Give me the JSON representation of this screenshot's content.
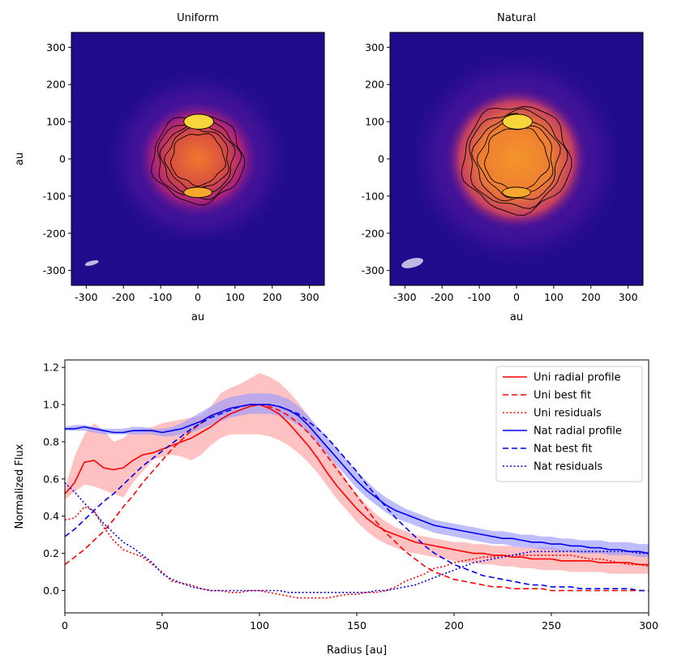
{
  "chart_data": [
    {
      "type": "heatmap",
      "title": "Uniform",
      "xlabel": "au",
      "ylabel": "au",
      "xlim": [
        -340,
        340
      ],
      "ylim": [
        -340,
        340
      ],
      "xticks": [
        -300,
        -200,
        -100,
        0,
        100,
        200,
        300
      ],
      "yticks": [
        300,
        200,
        100,
        0,
        -100,
        -200,
        -300
      ],
      "xtick_labels": [
        "-300",
        "-200",
        "-100",
        "0",
        "100",
        "200",
        "300"
      ],
      "ytick_labels": [
        "300",
        "200",
        "100",
        "0",
        "-100",
        "-200",
        "-300"
      ],
      "colormap": "inferno-like (dark blue to yellow)",
      "beam": {
        "x": -285,
        "y": -280,
        "major": 38,
        "minor": 12,
        "angle_deg": 15
      },
      "disk": {
        "semi_x": 140,
        "semi_y": 135
      },
      "contour_levels": [
        0.3,
        0.45,
        0.6,
        0.75,
        0.9
      ]
    },
    {
      "type": "heatmap",
      "title": "Natural",
      "xlabel": "au",
      "ylabel": "",
      "xlim": [
        -340,
        340
      ],
      "ylim": [
        -340,
        340
      ],
      "xticks": [
        -300,
        -200,
        -100,
        0,
        100,
        200,
        300
      ],
      "yticks": [
        300,
        200,
        100,
        0,
        -100,
        -200,
        -300
      ],
      "xtick_labels": [
        "-300",
        "-200",
        "-100",
        "0",
        "100",
        "200",
        "300"
      ],
      "ytick_labels": [
        "300",
        "200",
        "100",
        "0",
        "-100",
        "-200",
        "-300"
      ],
      "colormap": "inferno-like (dark blue to yellow)",
      "beam": {
        "x": -280,
        "y": -280,
        "major": 60,
        "minor": 24,
        "angle_deg": 15
      },
      "disk": {
        "semi_x": 165,
        "semi_y": 165
      },
      "contour_levels": [
        0.3,
        0.45,
        0.6,
        0.75,
        0.9
      ]
    },
    {
      "type": "line",
      "title": "",
      "xlabel": "Radius [au]",
      "ylabel": "Normalized Flux",
      "xlim": [
        0,
        300
      ],
      "ylim": [
        -0.12,
        1.24
      ],
      "xticks": [
        0,
        50,
        100,
        150,
        200,
        250,
        300
      ],
      "yticks": [
        0.0,
        0.2,
        0.4,
        0.6,
        0.8,
        1.0,
        1.2
      ],
      "xtick_labels": [
        "0",
        "50",
        "100",
        "150",
        "200",
        "250",
        "300"
      ],
      "ytick_labels": [
        "0.0",
        "0.2",
        "0.4",
        "0.6",
        "0.8",
        "1.0",
        "1.2"
      ],
      "legend_position": "top-right",
      "x": [
        0,
        5,
        10,
        15,
        20,
        25,
        30,
        35,
        40,
        45,
        50,
        55,
        60,
        65,
        70,
        75,
        80,
        85,
        90,
        95,
        100,
        105,
        110,
        115,
        120,
        125,
        130,
        135,
        140,
        145,
        150,
        155,
        160,
        165,
        170,
        175,
        180,
        185,
        190,
        195,
        200,
        205,
        210,
        215,
        220,
        225,
        230,
        235,
        240,
        245,
        250,
        255,
        260,
        265,
        270,
        275,
        280,
        285,
        290,
        295,
        300
      ],
      "bands": [
        {
          "name": "Uni uncertainty",
          "color": "#ff9a9a",
          "opacity": 0.6,
          "upper": [
            0.55,
            0.72,
            0.84,
            0.9,
            0.86,
            0.8,
            0.82,
            0.86,
            0.87,
            0.88,
            0.9,
            0.91,
            0.92,
            0.93,
            0.94,
            0.99,
            1.06,
            1.09,
            1.11,
            1.14,
            1.17,
            1.15,
            1.12,
            1.07,
            1.01,
            0.94,
            0.85,
            0.76,
            0.67,
            0.59,
            0.52,
            0.46,
            0.41,
            0.37,
            0.34,
            0.32,
            0.3,
            0.29,
            0.28,
            0.27,
            0.26,
            0.26,
            0.25,
            0.25,
            0.24,
            0.24,
            0.24,
            0.23,
            0.23,
            0.23,
            0.23,
            0.22,
            0.22,
            0.22,
            0.22,
            0.22,
            0.21,
            0.21,
            0.21,
            0.21,
            0.21
          ],
          "lower": [
            0.49,
            0.53,
            0.57,
            0.56,
            0.54,
            0.52,
            0.5,
            0.58,
            0.64,
            0.7,
            0.72,
            0.73,
            0.72,
            0.7,
            0.73,
            0.78,
            0.82,
            0.84,
            0.84,
            0.84,
            0.84,
            0.83,
            0.81,
            0.78,
            0.74,
            0.69,
            0.63,
            0.56,
            0.49,
            0.43,
            0.37,
            0.32,
            0.28,
            0.25,
            0.23,
            0.21,
            0.2,
            0.19,
            0.18,
            0.17,
            0.16,
            0.15,
            0.15,
            0.14,
            0.14,
            0.13,
            0.13,
            0.12,
            0.12,
            0.11,
            0.11,
            0.11,
            0.1,
            0.1,
            0.1,
            0.1,
            0.09,
            0.09,
            0.09,
            0.09,
            0.09
          ]
        },
        {
          "name": "Nat uncertainty",
          "color": "#9a9aff",
          "opacity": 0.65,
          "upper": [
            0.88,
            0.89,
            0.89,
            0.88,
            0.87,
            0.87,
            0.87,
            0.88,
            0.88,
            0.87,
            0.87,
            0.88,
            0.9,
            0.93,
            0.96,
            0.99,
            1.02,
            1.04,
            1.05,
            1.06,
            1.06,
            1.06,
            1.05,
            1.03,
            0.99,
            0.94,
            0.88,
            0.82,
            0.76,
            0.7,
            0.64,
            0.59,
            0.54,
            0.5,
            0.47,
            0.44,
            0.42,
            0.4,
            0.38,
            0.37,
            0.36,
            0.35,
            0.34,
            0.33,
            0.32,
            0.32,
            0.31,
            0.3,
            0.3,
            0.29,
            0.29,
            0.28,
            0.28,
            0.27,
            0.27,
            0.27,
            0.26,
            0.26,
            0.26,
            0.25,
            0.25
          ],
          "lower": [
            0.86,
            0.86,
            0.86,
            0.85,
            0.84,
            0.84,
            0.84,
            0.84,
            0.84,
            0.84,
            0.83,
            0.83,
            0.84,
            0.85,
            0.87,
            0.89,
            0.91,
            0.93,
            0.94,
            0.95,
            0.95,
            0.95,
            0.94,
            0.92,
            0.89,
            0.85,
            0.79,
            0.73,
            0.67,
            0.61,
            0.55,
            0.5,
            0.46,
            0.42,
            0.39,
            0.37,
            0.35,
            0.33,
            0.31,
            0.3,
            0.29,
            0.28,
            0.27,
            0.26,
            0.25,
            0.25,
            0.24,
            0.23,
            0.23,
            0.22,
            0.22,
            0.21,
            0.21,
            0.2,
            0.2,
            0.2,
            0.19,
            0.19,
            0.19,
            0.18,
            0.18
          ]
        }
      ],
      "series": [
        {
          "name": "Uni radial profile",
          "color": "#ff0000",
          "dash": "solid",
          "values": [
            0.52,
            0.58,
            0.69,
            0.7,
            0.66,
            0.65,
            0.66,
            0.7,
            0.73,
            0.74,
            0.76,
            0.78,
            0.8,
            0.82,
            0.85,
            0.88,
            0.92,
            0.95,
            0.97,
            0.99,
            1.0,
            0.98,
            0.95,
            0.9,
            0.84,
            0.78,
            0.71,
            0.63,
            0.56,
            0.5,
            0.44,
            0.39,
            0.35,
            0.32,
            0.3,
            0.28,
            0.26,
            0.25,
            0.24,
            0.23,
            0.22,
            0.21,
            0.2,
            0.2,
            0.19,
            0.19,
            0.18,
            0.18,
            0.17,
            0.17,
            0.17,
            0.16,
            0.16,
            0.16,
            0.16,
            0.15,
            0.15,
            0.15,
            0.15,
            0.14,
            0.14
          ]
        },
        {
          "name": "Uni best fit",
          "color": "#ff0000",
          "dash": "dashed",
          "values": [
            0.14,
            0.18,
            0.22,
            0.27,
            0.32,
            0.38,
            0.45,
            0.51,
            0.58,
            0.64,
            0.7,
            0.76,
            0.81,
            0.86,
            0.9,
            0.94,
            0.96,
            0.98,
            0.99,
            1.0,
            1.0,
            0.99,
            0.97,
            0.94,
            0.9,
            0.85,
            0.79,
            0.72,
            0.65,
            0.58,
            0.51,
            0.44,
            0.37,
            0.31,
            0.26,
            0.21,
            0.17,
            0.13,
            0.1,
            0.08,
            0.06,
            0.05,
            0.04,
            0.03,
            0.02,
            0.02,
            0.01,
            0.01,
            0.01,
            0.01,
            0.0,
            0.0,
            0.0,
            0.0,
            0.0,
            0.0,
            0.0,
            0.0,
            0.0,
            0.0,
            0.0
          ]
        },
        {
          "name": "Uni residuals",
          "color": "#ff0000",
          "dash": "dotted",
          "values": [
            0.38,
            0.39,
            0.45,
            0.43,
            0.34,
            0.27,
            0.22,
            0.2,
            0.18,
            0.14,
            0.1,
            0.05,
            0.04,
            0.03,
            0.01,
            0.0,
            0.0,
            -0.01,
            -0.01,
            0.0,
            0.0,
            -0.01,
            -0.02,
            -0.03,
            -0.04,
            -0.04,
            -0.04,
            -0.04,
            -0.03,
            -0.02,
            -0.02,
            -0.01,
            -0.01,
            0.0,
            0.02,
            0.05,
            0.07,
            0.09,
            0.12,
            0.13,
            0.15,
            0.16,
            0.17,
            0.18,
            0.18,
            0.19,
            0.19,
            0.19,
            0.19,
            0.19,
            0.19,
            0.19,
            0.19,
            0.18,
            0.17,
            0.17,
            0.16,
            0.15,
            0.14,
            0.14,
            0.13
          ]
        },
        {
          "name": "Nat radial profile",
          "color": "#0000ee",
          "dash": "solid",
          "values": [
            0.87,
            0.87,
            0.88,
            0.87,
            0.86,
            0.85,
            0.85,
            0.86,
            0.86,
            0.86,
            0.85,
            0.86,
            0.87,
            0.89,
            0.91,
            0.94,
            0.96,
            0.98,
            0.99,
            1.0,
            1.0,
            1.0,
            0.99,
            0.97,
            0.94,
            0.89,
            0.83,
            0.77,
            0.71,
            0.65,
            0.59,
            0.54,
            0.5,
            0.46,
            0.43,
            0.41,
            0.39,
            0.37,
            0.35,
            0.34,
            0.33,
            0.32,
            0.31,
            0.3,
            0.29,
            0.28,
            0.28,
            0.27,
            0.26,
            0.26,
            0.25,
            0.25,
            0.24,
            0.24,
            0.23,
            0.23,
            0.22,
            0.22,
            0.21,
            0.21,
            0.2
          ]
        },
        {
          "name": "Nat best fit",
          "color": "#0000ee",
          "dash": "dashed",
          "values": [
            0.29,
            0.33,
            0.38,
            0.43,
            0.48,
            0.52,
            0.57,
            0.62,
            0.67,
            0.71,
            0.75,
            0.79,
            0.83,
            0.87,
            0.9,
            0.93,
            0.95,
            0.97,
            0.99,
            1.0,
            1.0,
            1.0,
            0.99,
            0.97,
            0.95,
            0.91,
            0.87,
            0.82,
            0.76,
            0.7,
            0.64,
            0.57,
            0.51,
            0.45,
            0.39,
            0.34,
            0.29,
            0.24,
            0.2,
            0.17,
            0.14,
            0.12,
            0.1,
            0.08,
            0.07,
            0.06,
            0.05,
            0.04,
            0.03,
            0.03,
            0.02,
            0.02,
            0.02,
            0.01,
            0.01,
            0.01,
            0.01,
            0.01,
            0.01,
            0.0,
            0.0
          ]
        },
        {
          "name": "Nat residuals",
          "color": "#0000ee",
          "dash": "dotted",
          "values": [
            0.58,
            0.53,
            0.47,
            0.42,
            0.36,
            0.31,
            0.26,
            0.23,
            0.19,
            0.15,
            0.09,
            0.06,
            0.04,
            0.02,
            0.01,
            0.0,
            0.0,
            0.0,
            0.0,
            0.0,
            0.0,
            0.0,
            0.0,
            -0.01,
            -0.01,
            -0.01,
            -0.01,
            -0.01,
            -0.01,
            -0.01,
            -0.01,
            -0.01,
            0.0,
            0.0,
            0.01,
            0.02,
            0.03,
            0.05,
            0.07,
            0.09,
            0.11,
            0.13,
            0.15,
            0.16,
            0.17,
            0.18,
            0.19,
            0.2,
            0.21,
            0.21,
            0.21,
            0.21,
            0.21,
            0.21,
            0.21,
            0.21,
            0.21,
            0.21,
            0.21,
            0.2,
            0.2
          ]
        }
      ]
    }
  ]
}
